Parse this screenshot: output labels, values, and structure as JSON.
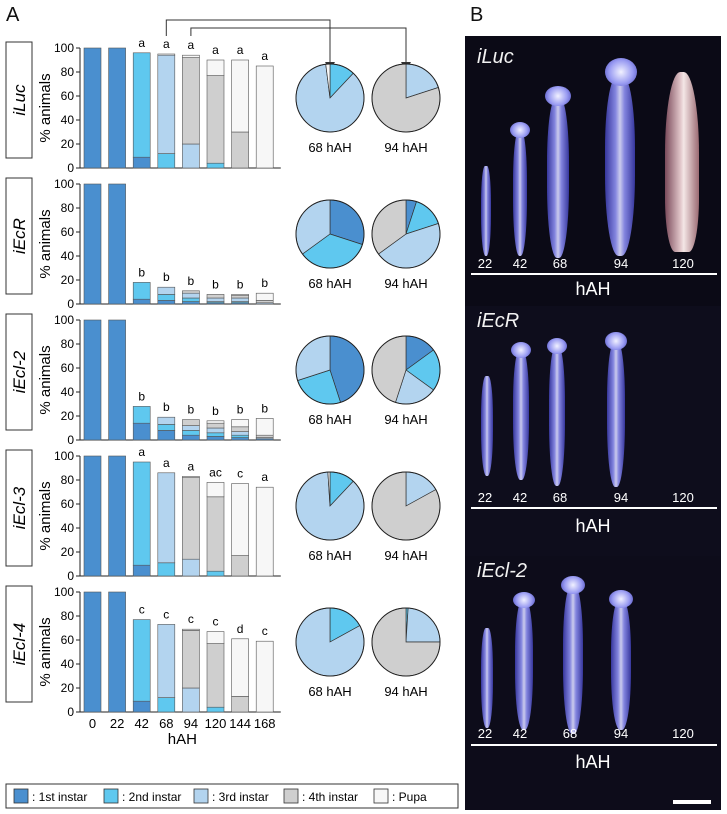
{
  "panel_a_label": "A",
  "panel_b_label": "B",
  "ylabel": "% animals",
  "xlabel": "hAH",
  "x_ticks": [
    "0",
    "22",
    "42",
    "68",
    "94",
    "120",
    "144",
    "168"
  ],
  "y_ticks": [
    "0",
    "20",
    "40",
    "60",
    "80",
    "100"
  ],
  "pie_labels": [
    "68 hAH",
    "94 hAH"
  ],
  "colors": {
    "1st": "#4a8fcf",
    "2nd": "#5fc8ef",
    "3rd": "#b3d4ef",
    "4th": "#cfcfcf",
    "Pupa": "#f7f7f7"
  },
  "legend": [
    {
      "key": "1st",
      "label": ": 1st instar"
    },
    {
      "key": "2nd",
      "label": ": 2nd instar"
    },
    {
      "key": "3rd",
      "label": ": 3rd instar"
    },
    {
      "key": "4th",
      "label": ": 4th instar"
    },
    {
      "key": "Pupa",
      "label": ": Pupa"
    }
  ],
  "chart_data": [
    {
      "type": "bar",
      "stacked": true,
      "row_label": "iLuc",
      "categories": [
        "0",
        "22",
        "42",
        "68",
        "94",
        "120",
        "144",
        "168"
      ],
      "ylim": [
        0,
        100
      ],
      "series": [
        {
          "name": "1st instar",
          "values": [
            100,
            100,
            9,
            0,
            0,
            0,
            0,
            0
          ]
        },
        {
          "name": "2nd instar",
          "values": [
            0,
            0,
            87,
            12,
            0,
            4,
            0,
            0
          ]
        },
        {
          "name": "3rd instar",
          "values": [
            0,
            0,
            0,
            82,
            20,
            0,
            0,
            0
          ]
        },
        {
          "name": "4th instar",
          "values": [
            0,
            0,
            0,
            0,
            72,
            73,
            30,
            0
          ]
        },
        {
          "name": "Pupa",
          "values": [
            0,
            0,
            0,
            1,
            2,
            13,
            60,
            85
          ]
        }
      ],
      "letters": [
        "",
        "",
        "a",
        "a",
        "a",
        "a",
        "a",
        "a"
      ],
      "pies": [
        {
          "label": "68 hAH",
          "values": [
            0,
            12,
            86,
            0,
            2
          ]
        },
        {
          "label": "94 hAH",
          "values": [
            0,
            0,
            20,
            80,
            0
          ]
        }
      ]
    },
    {
      "type": "bar",
      "stacked": true,
      "row_label": "iEcR",
      "categories": [
        "0",
        "22",
        "42",
        "68",
        "94",
        "120",
        "144",
        "168"
      ],
      "ylim": [
        0,
        100
      ],
      "series": [
        {
          "name": "1st instar",
          "values": [
            100,
            100,
            4,
            3,
            2,
            1,
            1,
            0
          ]
        },
        {
          "name": "2nd instar",
          "values": [
            0,
            0,
            14,
            5,
            3,
            1,
            1,
            0
          ]
        },
        {
          "name": "3rd instar",
          "values": [
            0,
            0,
            0,
            6,
            4,
            3,
            3,
            1
          ]
        },
        {
          "name": "4th instar",
          "values": [
            0,
            0,
            0,
            0,
            2,
            3,
            2,
            2
          ]
        },
        {
          "name": "Pupa",
          "values": [
            0,
            0,
            0,
            0,
            0,
            0,
            1,
            6
          ]
        }
      ],
      "letters": [
        "",
        "",
        "b",
        "b",
        "b",
        "b",
        "b",
        "b"
      ],
      "pies": [
        {
          "label": "68 hAH",
          "values": [
            30,
            35,
            35,
            0,
            0
          ]
        },
        {
          "label": "94 hAH",
          "values": [
            5,
            15,
            45,
            35,
            0
          ]
        }
      ]
    },
    {
      "type": "bar",
      "stacked": true,
      "row_label": "iEcl-2",
      "categories": [
        "0",
        "22",
        "42",
        "68",
        "94",
        "120",
        "144",
        "168"
      ],
      "ylim": [
        0,
        100
      ],
      "series": [
        {
          "name": "1st instar",
          "values": [
            100,
            100,
            14,
            8,
            4,
            3,
            2,
            1
          ]
        },
        {
          "name": "2nd instar",
          "values": [
            0,
            0,
            14,
            5,
            4,
            3,
            2,
            0
          ]
        },
        {
          "name": "3rd instar",
          "values": [
            0,
            0,
            0,
            6,
            4,
            4,
            3,
            1
          ]
        },
        {
          "name": "4th instar",
          "values": [
            0,
            0,
            0,
            0,
            5,
            4,
            4,
            2
          ]
        },
        {
          "name": "Pupa",
          "values": [
            0,
            0,
            0,
            0,
            0,
            2,
            6,
            14
          ]
        }
      ],
      "letters": [
        "",
        "",
        "b",
        "b",
        "b",
        "b",
        "b",
        "b"
      ],
      "pies": [
        {
          "label": "68 hAH",
          "values": [
            45,
            25,
            30,
            0,
            0
          ]
        },
        {
          "label": "94 hAH",
          "values": [
            15,
            20,
            20,
            45,
            0
          ]
        }
      ]
    },
    {
      "type": "bar",
      "stacked": true,
      "row_label": "iEcl-3",
      "categories": [
        "0",
        "22",
        "42",
        "68",
        "94",
        "120",
        "144",
        "168"
      ],
      "ylim": [
        0,
        100
      ],
      "series": [
        {
          "name": "1st instar",
          "values": [
            100,
            100,
            9,
            0,
            0,
            0,
            0,
            0
          ]
        },
        {
          "name": "2nd instar",
          "values": [
            0,
            0,
            86,
            11,
            0,
            4,
            0,
            0
          ]
        },
        {
          "name": "3rd instar",
          "values": [
            0,
            0,
            0,
            75,
            14,
            0,
            0,
            0
          ]
        },
        {
          "name": "4th instar",
          "values": [
            0,
            0,
            0,
            0,
            68,
            62,
            17,
            0
          ]
        },
        {
          "name": "Pupa",
          "values": [
            0,
            0,
            0,
            0,
            1,
            12,
            60,
            74
          ]
        }
      ],
      "letters": [
        "",
        "",
        "a",
        "a",
        "a",
        "ac",
        "c",
        "a"
      ],
      "pies": [
        {
          "label": "68 hAH",
          "values": [
            0,
            12,
            87,
            0,
            1
          ]
        },
        {
          "label": "94 hAH",
          "values": [
            0,
            0,
            17,
            83,
            0
          ]
        }
      ]
    },
    {
      "type": "bar",
      "stacked": true,
      "row_label": "iEcl-4",
      "categories": [
        "0",
        "22",
        "42",
        "68",
        "94",
        "120",
        "144",
        "168"
      ],
      "ylim": [
        0,
        100
      ],
      "series": [
        {
          "name": "1st instar",
          "values": [
            100,
            100,
            9,
            0,
            0,
            0,
            0,
            0
          ]
        },
        {
          "name": "2nd instar",
          "values": [
            0,
            0,
            68,
            12,
            0,
            4,
            0,
            0
          ]
        },
        {
          "name": "3rd instar",
          "values": [
            0,
            0,
            0,
            61,
            20,
            0,
            0,
            0
          ]
        },
        {
          "name": "4th instar",
          "values": [
            0,
            0,
            0,
            0,
            48,
            53,
            13,
            0
          ]
        },
        {
          "name": "Pupa",
          "values": [
            0,
            0,
            0,
            0,
            1,
            10,
            48,
            59
          ]
        }
      ],
      "letters": [
        "",
        "",
        "c",
        "c",
        "c",
        "c",
        "d",
        "c"
      ],
      "pies": [
        {
          "label": "68 hAH",
          "values": [
            0,
            17,
            83,
            0,
            0
          ]
        },
        {
          "label": "94 hAH",
          "values": [
            0,
            1,
            24,
            75,
            0
          ]
        }
      ]
    }
  ],
  "photos": [
    {
      "label": "iLuc",
      "ticks": [
        "22",
        "42",
        "68",
        "94",
        "120"
      ],
      "hah": "hAH"
    },
    {
      "label": "iEcR",
      "ticks": [
        "22",
        "42",
        "68",
        "94",
        "120"
      ],
      "hah": "hAH"
    },
    {
      "label": "iEcl-2",
      "ticks": [
        "22",
        "42",
        "68",
        "94",
        "120"
      ],
      "hah": "hAH"
    }
  ]
}
